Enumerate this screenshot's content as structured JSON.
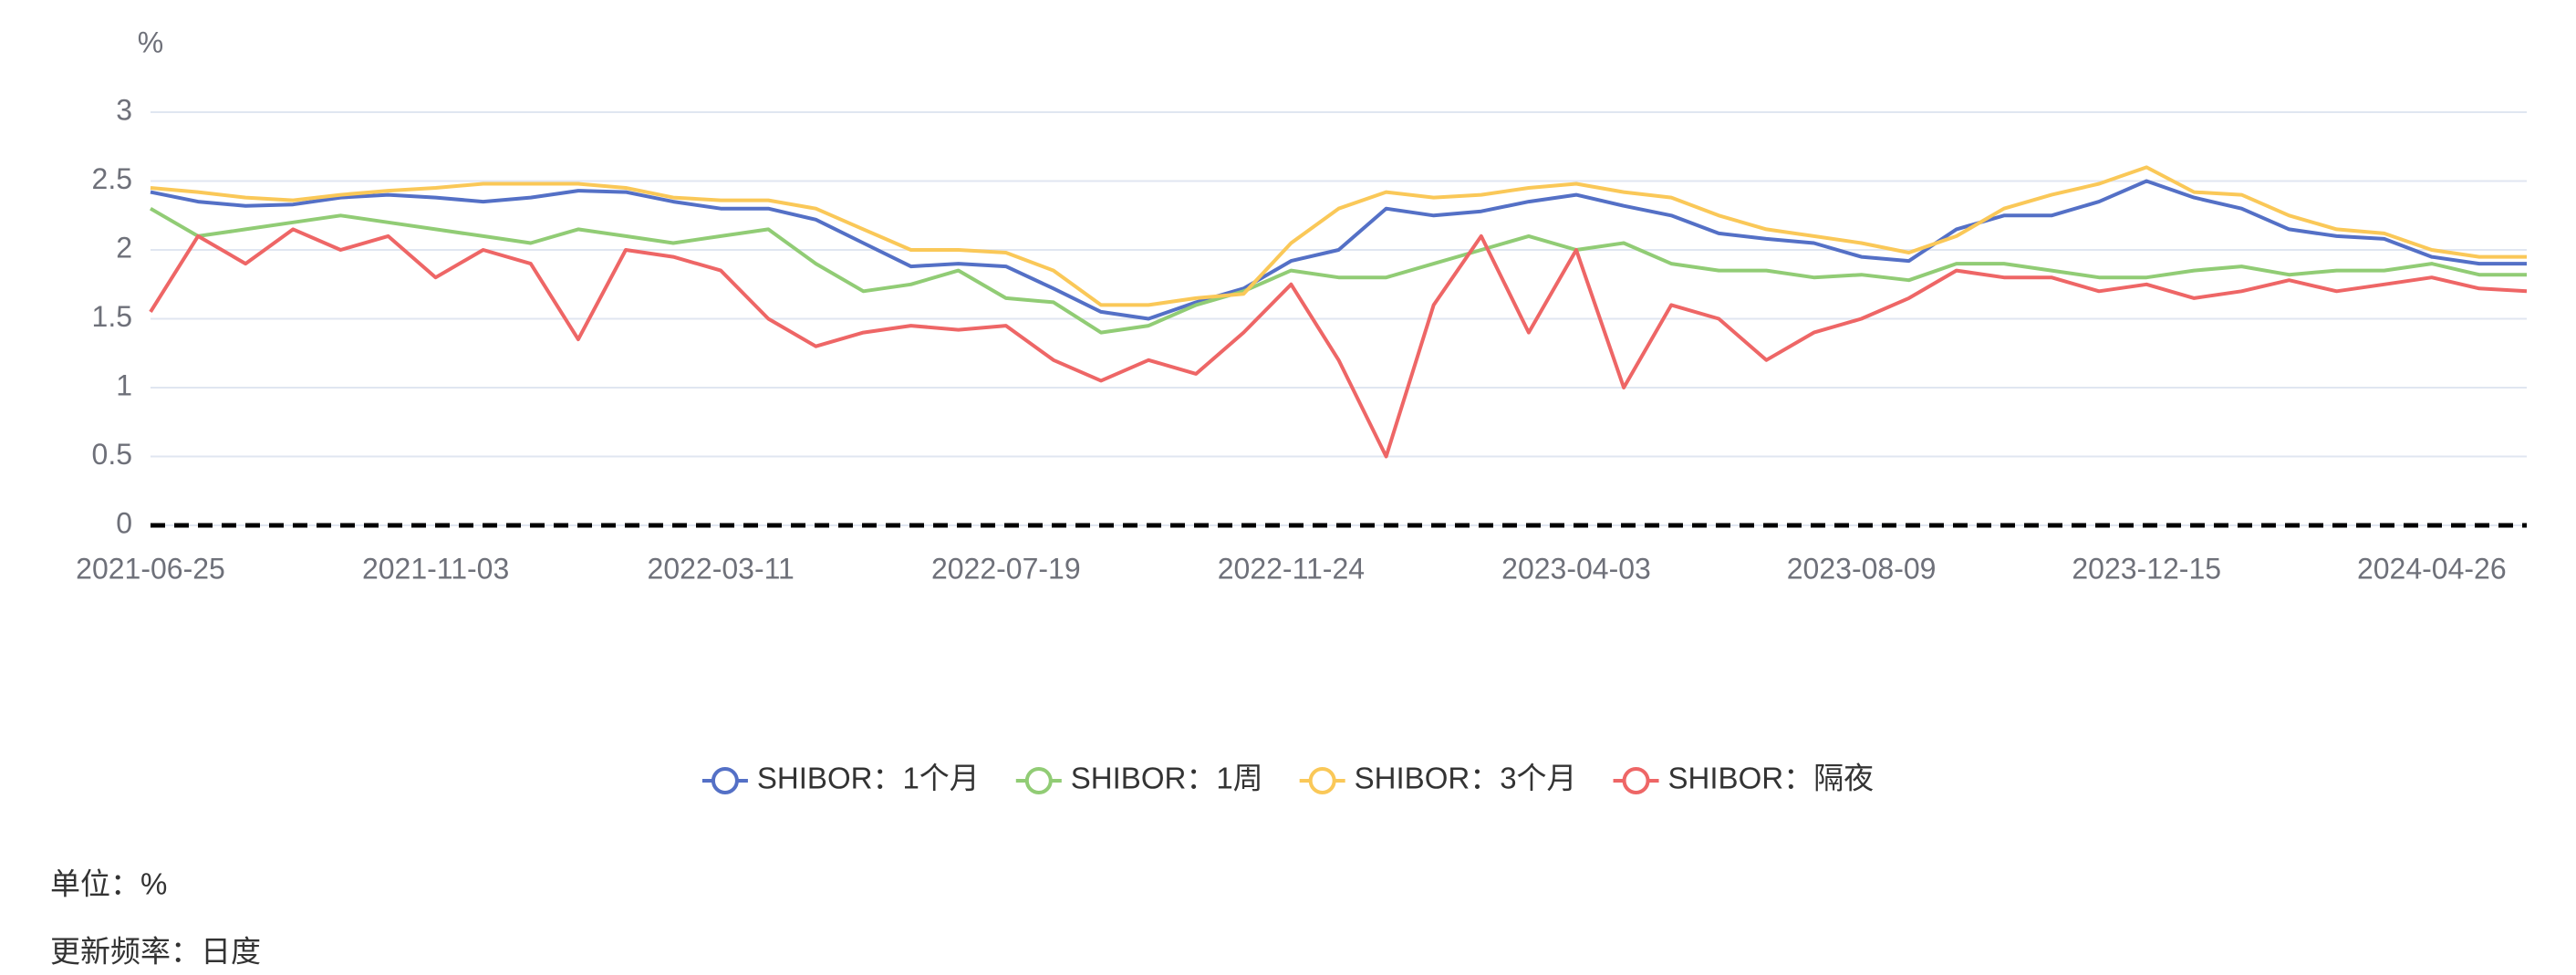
{
  "chart_data": {
    "type": "line",
    "y_label": "%",
    "categories": [
      "2021-06-25",
      null,
      null,
      null,
      null,
      null,
      "2021-11-03",
      null,
      null,
      null,
      null,
      null,
      "2022-03-11",
      null,
      null,
      null,
      null,
      null,
      "2022-07-19",
      null,
      null,
      null,
      null,
      null,
      "2022-11-24",
      null,
      null,
      null,
      null,
      null,
      "2023-04-03",
      null,
      null,
      null,
      null,
      null,
      "2023-08-09",
      null,
      null,
      null,
      null,
      null,
      "2023-12-15",
      null,
      null,
      null,
      null,
      null,
      "2024-04-26",
      null,
      null
    ],
    "series": [
      {
        "name": "SHIBOR：1个月",
        "color": "#5470c6",
        "values": [
          2.42,
          2.35,
          2.32,
          2.33,
          2.38,
          2.4,
          2.38,
          2.35,
          2.38,
          2.43,
          2.42,
          2.35,
          2.3,
          2.3,
          2.22,
          2.05,
          1.88,
          1.9,
          1.88,
          1.72,
          1.55,
          1.5,
          1.62,
          1.72,
          1.92,
          2.0,
          2.3,
          2.25,
          2.28,
          2.35,
          2.4,
          2.32,
          2.25,
          2.12,
          2.08,
          2.05,
          1.95,
          1.92,
          2.15,
          2.25,
          2.25,
          2.35,
          2.5,
          2.38,
          2.3,
          2.15,
          2.1,
          2.08,
          1.95,
          1.9,
          1.9
        ]
      },
      {
        "name": "SHIBOR：1周",
        "color": "#91cc75",
        "values": [
          2.3,
          2.1,
          2.15,
          2.2,
          2.25,
          2.2,
          2.15,
          2.1,
          2.05,
          2.15,
          2.1,
          2.05,
          2.1,
          2.15,
          1.9,
          1.7,
          1.75,
          1.85,
          1.65,
          1.62,
          1.4,
          1.45,
          1.6,
          1.7,
          1.85,
          1.8,
          1.8,
          1.9,
          2.0,
          2.1,
          2.0,
          2.05,
          1.9,
          1.85,
          1.85,
          1.8,
          1.82,
          1.78,
          1.9,
          1.9,
          1.85,
          1.8,
          1.8,
          1.85,
          1.88,
          1.82,
          1.85,
          1.85,
          1.9,
          1.82,
          1.82
        ]
      },
      {
        "name": "SHIBOR：3个月",
        "color": "#fac858",
        "values": [
          2.45,
          2.42,
          2.38,
          2.36,
          2.4,
          2.43,
          2.45,
          2.48,
          2.48,
          2.48,
          2.45,
          2.38,
          2.36,
          2.36,
          2.3,
          2.15,
          2.0,
          2.0,
          1.98,
          1.85,
          1.6,
          1.6,
          1.65,
          1.68,
          2.05,
          2.3,
          2.42,
          2.38,
          2.4,
          2.45,
          2.48,
          2.42,
          2.38,
          2.25,
          2.15,
          2.1,
          2.05,
          1.98,
          2.1,
          2.3,
          2.4,
          2.48,
          2.6,
          2.42,
          2.4,
          2.25,
          2.15,
          2.12,
          2.0,
          1.95,
          1.95
        ]
      },
      {
        "name": "SHIBOR：隔夜",
        "color": "#ee6666",
        "values": [
          1.55,
          2.1,
          1.9,
          2.15,
          2.0,
          2.1,
          1.8,
          2.0,
          1.9,
          1.35,
          2.0,
          1.95,
          1.85,
          1.5,
          1.3,
          1.4,
          1.45,
          1.42,
          1.45,
          1.2,
          1.05,
          1.2,
          1.1,
          1.4,
          1.75,
          1.2,
          0.5,
          1.6,
          2.1,
          1.4,
          2.0,
          1.0,
          1.6,
          1.5,
          1.2,
          1.4,
          1.5,
          1.65,
          1.85,
          1.8,
          1.8,
          1.7,
          1.75,
          1.65,
          1.7,
          1.78,
          1.7,
          1.75,
          1.8,
          1.72,
          1.7
        ]
      }
    ],
    "ylim": [
      0,
      3
    ],
    "yticks": [
      0,
      0.5,
      1,
      1.5,
      2,
      2.5,
      3
    ],
    "grid": true,
    "legend": "bottom"
  },
  "notes": [
    "单位：%",
    "更新频率：日度"
  ]
}
